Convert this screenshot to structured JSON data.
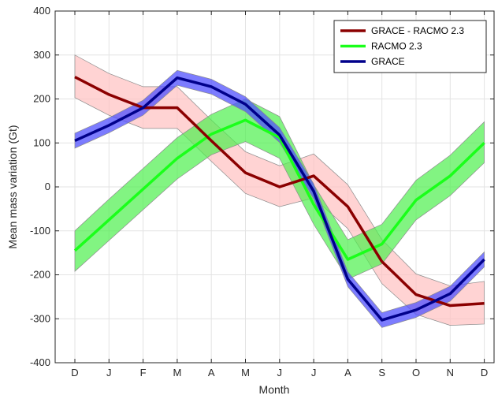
{
  "chart_data": {
    "type": "line",
    "xlabel": "Month",
    "ylabel": "Mean mass variation (Gt)",
    "ylim": [
      -400,
      400
    ],
    "yticks": [
      -400,
      -300,
      -200,
      -100,
      0,
      100,
      200,
      300,
      400
    ],
    "categories": [
      "D",
      "J",
      "F",
      "M",
      "A",
      "M",
      "J",
      "J",
      "A",
      "S",
      "O",
      "N",
      "D"
    ],
    "grid": true,
    "legend_position": "top-right",
    "series": [
      {
        "name": "GRACE - RACMO 2.3",
        "color": "#8b0000",
        "band_color": "#ffc0c0",
        "values": [
          250,
          210,
          180,
          180,
          105,
          32,
          0,
          25,
          -45,
          -170,
          -245,
          -270,
          -265
        ],
        "lower": [
          203,
          163,
          133,
          133,
          58,
          -15,
          -45,
          -25,
          -95,
          -220,
          -290,
          -315,
          -312
        ],
        "upper": [
          300,
          258,
          228,
          228,
          152,
          80,
          48,
          75,
          5,
          -120,
          -198,
          -225,
          -215
        ]
      },
      {
        "name": "RACMO 2.3",
        "color": "#1aff1a",
        "band_color": "#4df04d",
        "values": [
          -145,
          -75,
          -5,
          65,
          120,
          152,
          112,
          -40,
          -165,
          -130,
          -30,
          25,
          100
        ],
        "lower": [
          -192,
          -122,
          -52,
          18,
          73,
          103,
          65,
          -85,
          -210,
          -175,
          -75,
          -20,
          55
        ],
        "upper": [
          -100,
          -28,
          42,
          112,
          165,
          200,
          160,
          5,
          -120,
          -85,
          15,
          72,
          148
        ]
      },
      {
        "name": "GRACE",
        "color": "#00008b",
        "band_color": "#5050ff",
        "values": [
          105,
          140,
          180,
          248,
          228,
          188,
          118,
          -10,
          -210,
          -303,
          -280,
          -243,
          -165
        ],
        "lower": [
          88,
          123,
          163,
          231,
          211,
          171,
          101,
          -27,
          -227,
          -320,
          -297,
          -260,
          -182
        ],
        "upper": [
          122,
          157,
          197,
          265,
          245,
          205,
          135,
          7,
          -193,
          -286,
          -263,
          -226,
          -148
        ]
      }
    ]
  }
}
